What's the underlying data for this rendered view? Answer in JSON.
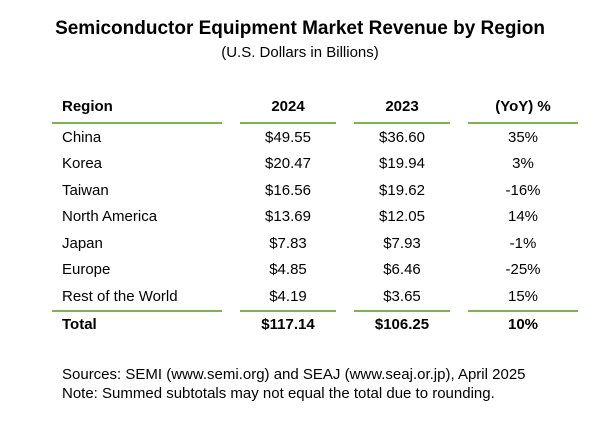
{
  "title": "Semiconductor Equipment Market Revenue by Region",
  "subtitle": "(U.S. Dollars in Billions)",
  "accent_color": "#7ab648",
  "table": {
    "headers": {
      "region": "Region",
      "y2024": "2024",
      "y2023": "2023",
      "yoy": "(YoY) %"
    },
    "rows": [
      {
        "region": "China",
        "y2024": "$49.55",
        "y2023": "$36.60",
        "yoy": "35%"
      },
      {
        "region": "Korea",
        "y2024": "$20.47",
        "y2023": "$19.94",
        "yoy": "3%"
      },
      {
        "region": "Taiwan",
        "y2024": "$16.56",
        "y2023": "$19.62",
        "yoy": "-16%"
      },
      {
        "region": "North America",
        "y2024": "$13.69",
        "y2023": "$12.05",
        "yoy": "14%"
      },
      {
        "region": "Japan",
        "y2024": "$7.83",
        "y2023": "$7.93",
        "yoy": "-1%"
      },
      {
        "region": "Europe",
        "y2024": "$4.85",
        "y2023": "$6.46",
        "yoy": "-25%"
      },
      {
        "region": "Rest of the World",
        "y2024": "$4.19",
        "y2023": "$3.65",
        "yoy": "15%"
      }
    ],
    "total": {
      "region": "Total",
      "y2024": "$117.14",
      "y2023": "$106.25",
      "yoy": "10%"
    }
  },
  "notes": {
    "sources": "Sources: SEMI (www.semi.org) and SEAJ (www.seaj.or.jp), April 2025",
    "rounding": "Note: Summed subtotals may not equal the total due to rounding."
  }
}
